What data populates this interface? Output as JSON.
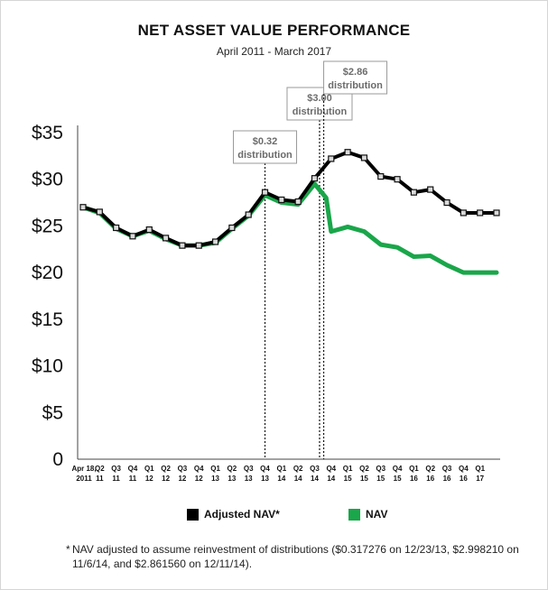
{
  "header": {
    "title": "NET ASSET VALUE PERFORMANCE",
    "subtitle": "April 2011 - March 2017"
  },
  "legend": {
    "adjusted_label": "Adjusted NAV*",
    "nav_label": "NAV"
  },
  "footnote": {
    "marker": "*",
    "text": "NAV adjusted to assume reinvestment of distributions ($0.317276 on 12/23/13, $2.998210 on 11/6/14, and $2.861560 on 12/11/14)."
  },
  "colors": {
    "adjusted": "#000000",
    "nav": "#1aa64a",
    "marker_fill": "#d9d9d9",
    "annotation_box": "#ffffff",
    "annotation_border": "#999999"
  },
  "chart_data": {
    "type": "line",
    "title": "NET ASSET VALUE PERFORMANCE",
    "subtitle": "April 2011 - March 2017",
    "ylim": [
      0,
      35
    ],
    "yticks": [
      0,
      5,
      10,
      15,
      20,
      25,
      30,
      35
    ],
    "ytick_labels": [
      "0",
      "$5",
      "$10",
      "$15",
      "$20",
      "$25",
      "$30",
      "$35"
    ],
    "grid": false,
    "legend_position": "bottom",
    "categories": [
      [
        "Apr 18,",
        "2011"
      ],
      [
        "Q2",
        "11"
      ],
      [
        "Q3",
        "11"
      ],
      [
        "Q4",
        "11"
      ],
      [
        "Q1",
        "12"
      ],
      [
        "Q2",
        "12"
      ],
      [
        "Q3",
        "12"
      ],
      [
        "Q4",
        "12"
      ],
      [
        "Q1",
        "13"
      ],
      [
        "Q2",
        "13"
      ],
      [
        "Q3",
        "13"
      ],
      [
        "Q4",
        "13"
      ],
      [
        "Q1",
        "14"
      ],
      [
        "Q2",
        "14"
      ],
      [
        "Q3",
        "14"
      ],
      [
        "Q4",
        "14"
      ],
      [
        "Q1",
        "15"
      ],
      [
        "Q2",
        "15"
      ],
      [
        "Q3",
        "15"
      ],
      [
        "Q4",
        "15"
      ],
      [
        "Q1",
        "16"
      ],
      [
        "Q2",
        "16"
      ],
      [
        "Q3",
        "16"
      ],
      [
        "Q4",
        "16"
      ],
      [
        "Q1",
        "17"
      ]
    ],
    "series": [
      {
        "name": "Adjusted NAV*",
        "x": [
          0,
          1,
          2,
          3,
          4,
          5,
          6,
          7,
          8,
          9,
          10,
          11,
          12,
          13,
          14,
          15,
          16,
          17,
          18,
          19,
          20,
          21,
          22,
          23,
          24,
          25
        ],
        "values": [
          27.0,
          26.5,
          24.8,
          23.9,
          24.6,
          23.7,
          22.9,
          22.9,
          23.3,
          24.8,
          26.2,
          28.6,
          27.8,
          27.6,
          30.1,
          32.2,
          32.9,
          32.3,
          30.3,
          30.0,
          28.6,
          28.9,
          27.5,
          26.4,
          26.4,
          26.4
        ]
      },
      {
        "name": "NAV",
        "x": [
          0,
          1,
          2,
          3,
          4,
          5,
          6,
          7,
          8,
          9,
          10,
          11,
          12,
          13,
          14,
          14.7,
          15,
          16,
          17,
          18,
          19,
          20,
          21,
          22,
          23,
          24,
          25
        ],
        "values": [
          27.0,
          26.4,
          24.7,
          23.9,
          24.5,
          23.6,
          22.9,
          22.9,
          23.2,
          24.7,
          26.1,
          28.3,
          27.5,
          27.3,
          29.5,
          28.0,
          24.4,
          24.9,
          24.4,
          23.0,
          22.7,
          21.7,
          21.8,
          20.8,
          20.0,
          20.0,
          20.0
        ]
      }
    ],
    "annotations": [
      {
        "label": [
          "$0.32",
          "distribution"
        ],
        "x": 11
      },
      {
        "label": [
          "$3.00",
          "distribution"
        ],
        "x": 14.3
      },
      {
        "label": [
          "$2.86",
          "distribution"
        ],
        "x": 14.55
      }
    ]
  }
}
